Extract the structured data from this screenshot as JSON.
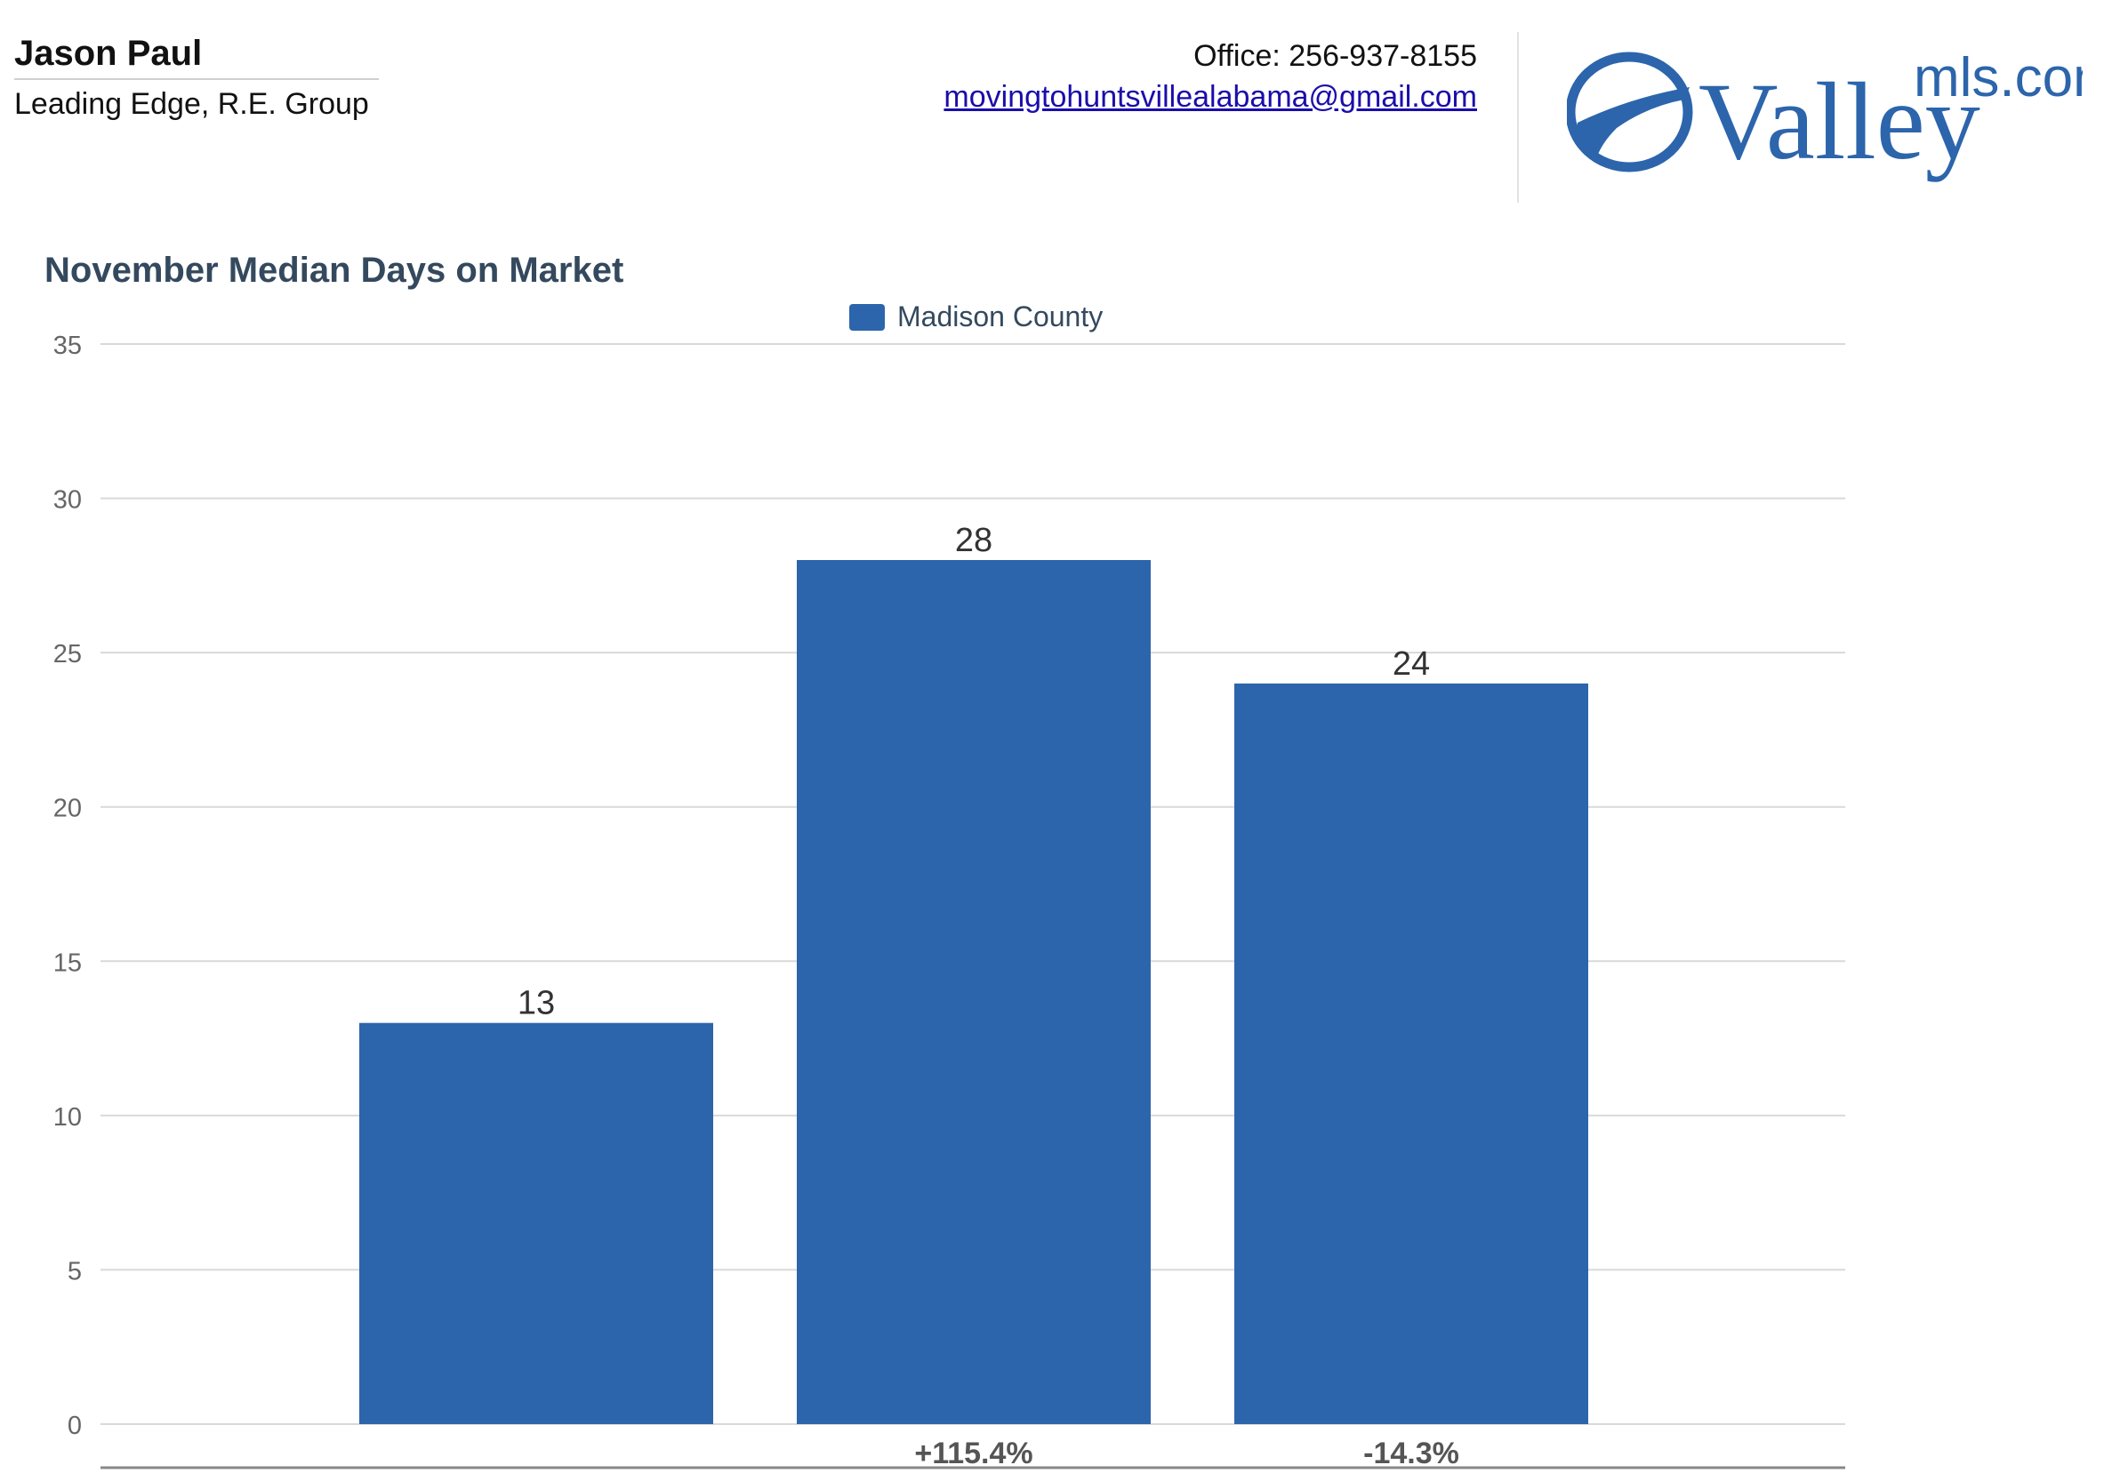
{
  "header": {
    "agent_name": "Jason Paul",
    "agent_company": "Leading Edge, R.E. Group",
    "office_phone": "Office: 256-937-8155",
    "email": "movingtohuntsvillealabama@gmail.com",
    "logo_text_main": "Valley",
    "logo_text_sup": "mls.com",
    "logo_color": "#2c65ab"
  },
  "chart_data": {
    "type": "bar",
    "title": "November Median Days on Market",
    "legend_position": "top-center",
    "grid": true,
    "ylim": [
      0,
      35
    ],
    "y_ticks": [
      0,
      5,
      10,
      15,
      20,
      25,
      30,
      35
    ],
    "series": [
      {
        "name": "Madison County",
        "values": [
          13,
          28,
          24
        ],
        "color": "#2c65ab"
      }
    ],
    "value_labels": [
      "13",
      "28",
      "24"
    ],
    "change_labels": [
      "",
      "+115.4%",
      "-14.3%"
    ]
  }
}
